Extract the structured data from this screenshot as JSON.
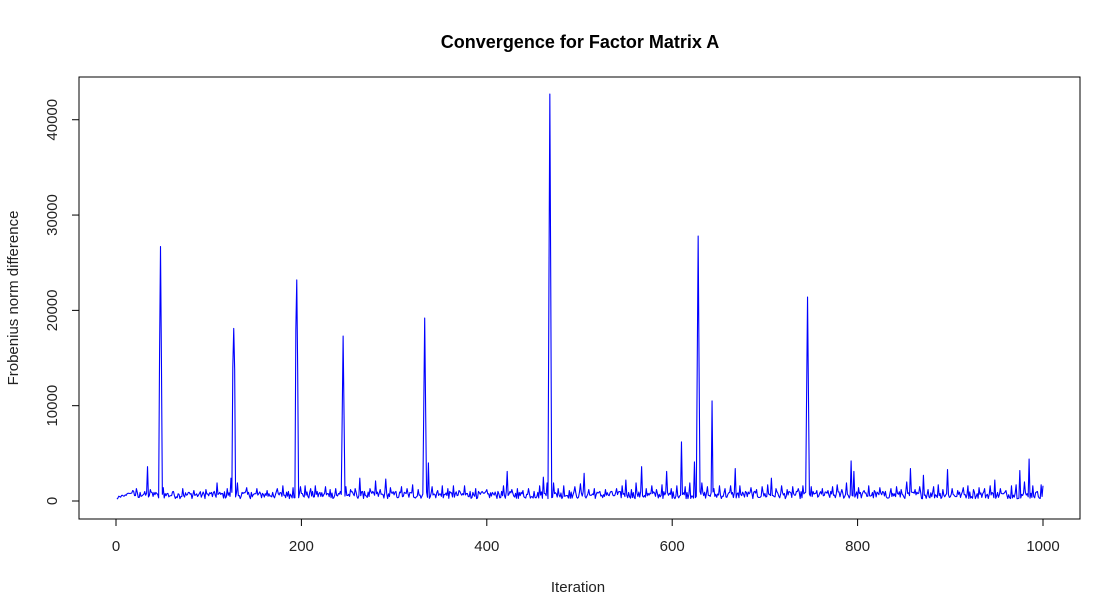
{
  "chart_data": {
    "type": "line",
    "title": "Convergence for Factor Matrix A",
    "xlabel": "Iteration",
    "ylabel": "Frobenius norm difference",
    "xlim": [
      0,
      1000
    ],
    "ylim": [
      0,
      42700
    ],
    "x_ticks": [
      0,
      200,
      400,
      600,
      800,
      1000
    ],
    "y_ticks": [
      0,
      10000,
      20000,
      30000,
      40000
    ],
    "grid": false,
    "legend": "none",
    "series": [
      {
        "color": "#0000ff",
        "baseline": 700,
        "spikes": [
          [
            1,
            200
          ],
          [
            5,
            400
          ],
          [
            10,
            650
          ],
          [
            14,
            800
          ],
          [
            18,
            1100
          ],
          [
            22,
            1300
          ],
          [
            26,
            900
          ],
          [
            30,
            700
          ],
          [
            34,
            3600
          ],
          [
            37,
            1200
          ],
          [
            41,
            900
          ],
          [
            45,
            700
          ],
          [
            47,
            15500
          ],
          [
            48,
            26700
          ],
          [
            49,
            15000
          ],
          [
            51,
            1400
          ],
          [
            56,
            800
          ],
          [
            62,
            1000
          ],
          [
            68,
            700
          ],
          [
            72,
            1300
          ],
          [
            78,
            900
          ],
          [
            84,
            1100
          ],
          [
            90,
            800
          ],
          [
            97,
            1200
          ],
          [
            103,
            900
          ],
          [
            109,
            1900
          ],
          [
            114,
            800
          ],
          [
            120,
            1300
          ],
          [
            124,
            2400
          ],
          [
            126,
            14000
          ],
          [
            127,
            18100
          ],
          [
            128,
            13800
          ],
          [
            131,
            1900
          ],
          [
            136,
            900
          ],
          [
            141,
            1400
          ],
          [
            146,
            900
          ],
          [
            152,
            1300
          ],
          [
            158,
            800
          ],
          [
            163,
            1100
          ],
          [
            169,
            900
          ],
          [
            174,
            1300
          ],
          [
            180,
            1600
          ],
          [
            186,
            1000
          ],
          [
            191,
            1400
          ],
          [
            194,
            18000
          ],
          [
            195,
            23200
          ],
          [
            196,
            13600
          ],
          [
            199,
            1500
          ],
          [
            204,
            1600
          ],
          [
            210,
            1300
          ],
          [
            215,
            1600
          ],
          [
            220,
            900
          ],
          [
            226,
            1500
          ],
          [
            231,
            1200
          ],
          [
            237,
            1300
          ],
          [
            242,
            1000
          ],
          [
            244,
            8800
          ],
          [
            245,
            17300
          ],
          [
            246,
            9000
          ],
          [
            248,
            1500
          ],
          [
            253,
            1200
          ],
          [
            258,
            1300
          ],
          [
            263,
            2400
          ],
          [
            268,
            1000
          ],
          [
            274,
            1300
          ],
          [
            280,
            2100
          ],
          [
            285,
            1200
          ],
          [
            291,
            2300
          ],
          [
            296,
            1400
          ],
          [
            302,
            1000
          ],
          [
            308,
            1500
          ],
          [
            314,
            1300
          ],
          [
            320,
            1700
          ],
          [
            326,
            1200
          ],
          [
            332,
            9800
          ],
          [
            333,
            19200
          ],
          [
            334,
            9700
          ],
          [
            337,
            4000
          ],
          [
            341,
            1500
          ],
          [
            347,
            1100
          ],
          [
            352,
            1600
          ],
          [
            358,
            1300
          ],
          [
            364,
            1600
          ],
          [
            370,
            1100
          ],
          [
            376,
            1600
          ],
          [
            382,
            1000
          ],
          [
            388,
            1300
          ],
          [
            394,
            900
          ],
          [
            400,
            1200
          ],
          [
            406,
            900
          ],
          [
            412,
            1000
          ],
          [
            418,
            1600
          ],
          [
            422,
            3100
          ],
          [
            427,
            1200
          ],
          [
            433,
            1300
          ],
          [
            439,
            1100
          ],
          [
            445,
            1300
          ],
          [
            451,
            1000
          ],
          [
            457,
            1600
          ],
          [
            461,
            2500
          ],
          [
            465,
            1900
          ],
          [
            467,
            22200
          ],
          [
            468,
            42700
          ],
          [
            469,
            22600
          ],
          [
            472,
            1900
          ],
          [
            477,
            1300
          ],
          [
            483,
            1600
          ],
          [
            489,
            1100
          ],
          [
            495,
            1500
          ],
          [
            501,
            1800
          ],
          [
            505,
            2900
          ],
          [
            510,
            1200
          ],
          [
            516,
            1300
          ],
          [
            522,
            1000
          ],
          [
            528,
            1200
          ],
          [
            534,
            1000
          ],
          [
            540,
            1300
          ],
          [
            546,
            1600
          ],
          [
            550,
            2200
          ],
          [
            556,
            1200
          ],
          [
            561,
            1900
          ],
          [
            567,
            3600
          ],
          [
            572,
            1300
          ],
          [
            578,
            1600
          ],
          [
            583,
            1200
          ],
          [
            589,
            1700
          ],
          [
            594,
            3100
          ],
          [
            599,
            1300
          ],
          [
            605,
            1600
          ],
          [
            610,
            6200
          ],
          [
            614,
            1500
          ],
          [
            619,
            1900
          ],
          [
            624,
            4100
          ],
          [
            627,
            14200
          ],
          [
            628,
            27800
          ],
          [
            629,
            14000
          ],
          [
            632,
            1900
          ],
          [
            638,
            1500
          ],
          [
            643,
            10500
          ],
          [
            645,
            1300
          ],
          [
            651,
            1600
          ],
          [
            657,
            1300
          ],
          [
            663,
            1600
          ],
          [
            668,
            3400
          ],
          [
            673,
            1600
          ],
          [
            679,
            1000
          ],
          [
            685,
            1400
          ],
          [
            691,
            1200
          ],
          [
            697,
            1500
          ],
          [
            703,
            1700
          ],
          [
            707,
            2400
          ],
          [
            712,
            1300
          ],
          [
            718,
            1600
          ],
          [
            724,
            1200
          ],
          [
            730,
            1500
          ],
          [
            736,
            1300
          ],
          [
            741,
            1600
          ],
          [
            745,
            11300
          ],
          [
            746,
            21400
          ],
          [
            747,
            11000
          ],
          [
            750,
            1500
          ],
          [
            756,
            1100
          ],
          [
            762,
            1300
          ],
          [
            768,
            1100
          ],
          [
            773,
            1500
          ],
          [
            778,
            1700
          ],
          [
            783,
            1200
          ],
          [
            788,
            1900
          ],
          [
            793,
            4200
          ],
          [
            796,
            3100
          ],
          [
            801,
            1400
          ],
          [
            807,
            1100
          ],
          [
            812,
            1600
          ],
          [
            818,
            1100
          ],
          [
            824,
            1400
          ],
          [
            830,
            1000
          ],
          [
            836,
            1300
          ],
          [
            842,
            1500
          ],
          [
            847,
            1200
          ],
          [
            853,
            2000
          ],
          [
            857,
            3400
          ],
          [
            862,
            1200
          ],
          [
            867,
            1500
          ],
          [
            871,
            2700
          ],
          [
            876,
            1200
          ],
          [
            882,
            1500
          ],
          [
            887,
            1700
          ],
          [
            892,
            1200
          ],
          [
            897,
            3300
          ],
          [
            902,
            1300
          ],
          [
            908,
            1100
          ],
          [
            914,
            1400
          ],
          [
            919,
            1600
          ],
          [
            925,
            1200
          ],
          [
            931,
            1400
          ],
          [
            937,
            1300
          ],
          [
            943,
            1600
          ],
          [
            948,
            2200
          ],
          [
            954,
            1300
          ],
          [
            960,
            1100
          ],
          [
            966,
            1600
          ],
          [
            971,
            1700
          ],
          [
            975,
            3200
          ],
          [
            980,
            2000
          ],
          [
            985,
            4400
          ],
          [
            989,
            1600
          ],
          [
            994,
            1000
          ],
          [
            998,
            1700
          ],
          [
            1000,
            1600
          ]
        ]
      }
    ]
  }
}
